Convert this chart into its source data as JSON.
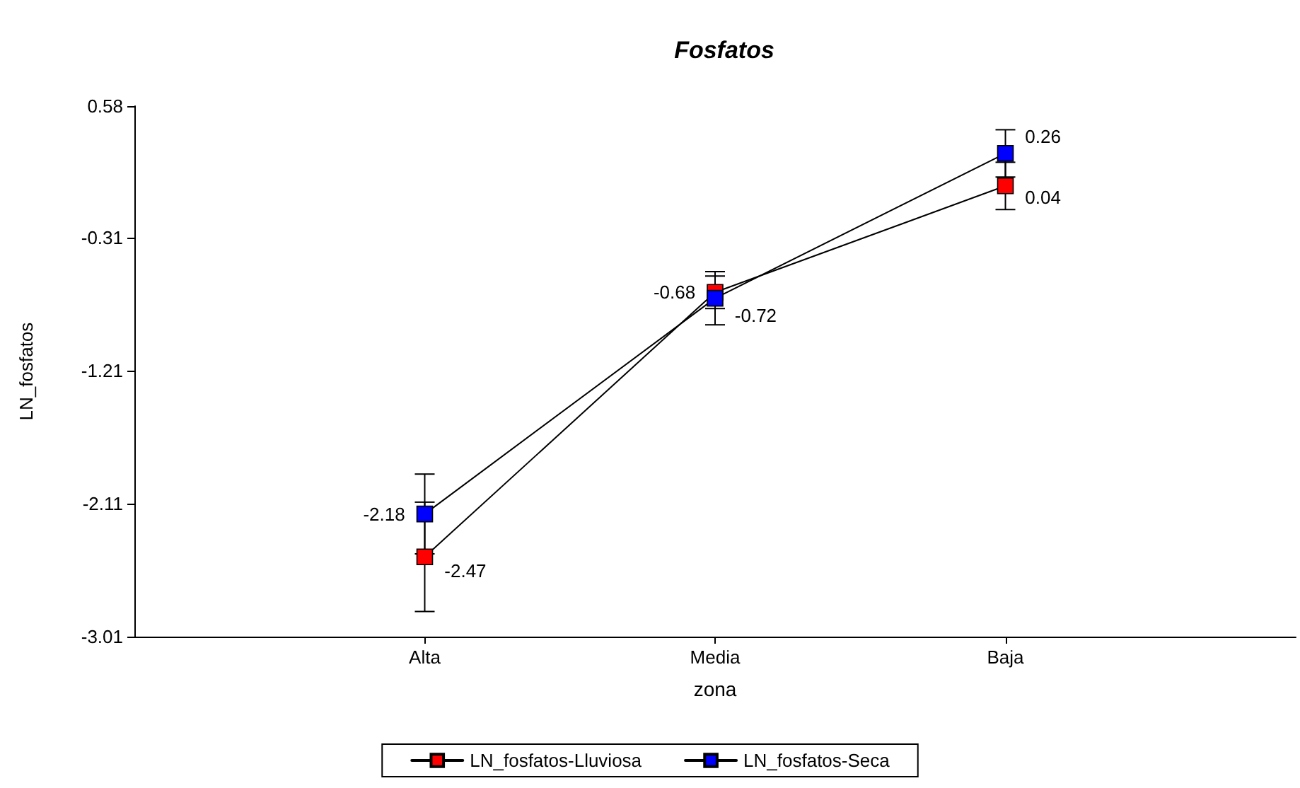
{
  "chart_data": {
    "type": "line",
    "title": "Fosfatos",
    "xlabel": "zona",
    "ylabel": "LN_fosfatos",
    "categories": [
      "Alta",
      "Media",
      "Baja"
    ],
    "series": [
      {
        "name": "LN_fosfatos-Lluviosa",
        "color": "#ff0000",
        "values": [
          -2.47,
          -0.68,
          0.04
        ],
        "errors": [
          0.37,
          0.11,
          0.16
        ]
      },
      {
        "name": "LN_fosfatos-Seca",
        "color": "#0000ff",
        "values": [
          -2.18,
          -0.72,
          0.26
        ],
        "errors": [
          0.27,
          0.18,
          0.16
        ]
      }
    ],
    "ylim": [
      -3.01,
      0.58
    ],
    "yticks": [
      0.58,
      -0.31,
      -1.21,
      -2.11,
      -3.01
    ],
    "grid": false,
    "legend": "bottom",
    "marker": "square",
    "line_style": "solid",
    "data_labels": true
  }
}
